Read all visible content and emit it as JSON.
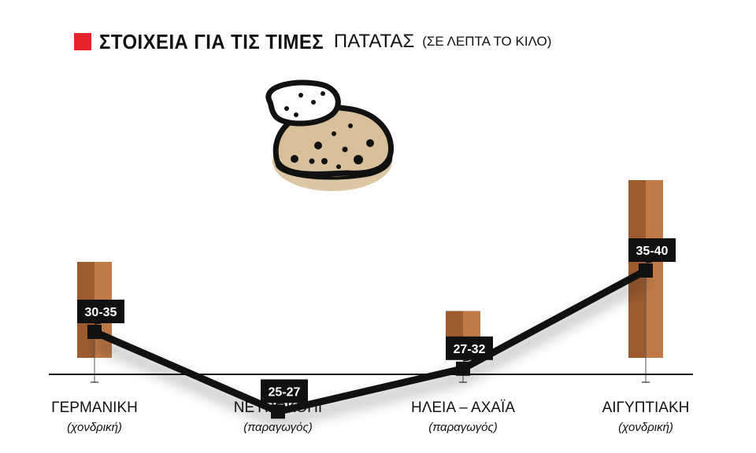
{
  "title": {
    "bold": "ΣΤΟΙΧΕΙΑ ΓΙΑ ΤΙΣ ΤΙΜΕΣ",
    "light": "ΠΑΤΑΤΑΣ",
    "unit": "(ΣΕ ΛΕΠΤΑ ΤΟ ΚΙΛΟ)"
  },
  "icon": "potato-icon",
  "colors": {
    "accent": "#e4232a",
    "bar_dark": "#9c5c30",
    "bar_light": "#c07a48",
    "line": "#111111",
    "potato_fill": "#d8c09a"
  },
  "chart_data": {
    "type": "line",
    "categories": [
      {
        "name": "ΓΕΡΜΑΝΙΚΗ",
        "sub": "(χονδρική)"
      },
      {
        "name": "ΝΕΥΡΟΚΟΠΙ",
        "sub": "(παραγωγός)"
      },
      {
        "name": "ΗΛΕΙΑ – ΑΧΑΪΑ",
        "sub": "(παραγωγός)"
      },
      {
        "name": "ΑΙΓΥΠΤΙΑΚΗ",
        "sub": "(χονδρική)"
      }
    ],
    "ranges": [
      [
        30,
        35
      ],
      [
        25,
        27
      ],
      [
        27,
        32
      ],
      [
        35,
        40
      ]
    ],
    "labels": [
      "30-35",
      "25-27",
      "27-32",
      "35-40"
    ],
    "line_values": [
      32.5,
      26,
      29.5,
      37.5
    ],
    "bar_values": [
      32.5,
      26,
      29.5,
      37.5
    ],
    "xlabel": "",
    "ylabel": "",
    "grid": false
  }
}
